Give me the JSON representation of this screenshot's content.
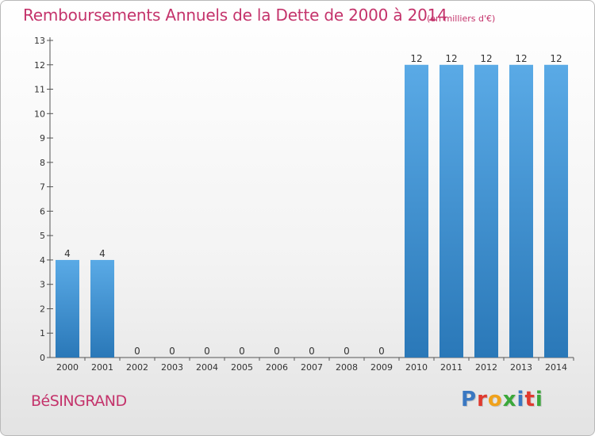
{
  "header": {
    "title": "Remboursements Annuels de la Dette de 2000 à 2014",
    "unit": "(en milliers d'€)"
  },
  "footer": {
    "commune": "BéSINGRAND",
    "logo_text": "Proxiti",
    "logo_colors": [
      "#3a78c2",
      "#e03a2f",
      "#f0a21c",
      "#3aa83a",
      "#3a78c2",
      "#e03a2f",
      "#3aa83a"
    ]
  },
  "colors": {
    "bar_top": "#5aaae6",
    "bar_bottom": "#2a78b8",
    "axis": "#555555",
    "text": "#333333"
  },
  "chart_data": {
    "type": "bar",
    "categories": [
      "2000",
      "2001",
      "2002",
      "2003",
      "2004",
      "2005",
      "2006",
      "2007",
      "2008",
      "2009",
      "2010",
      "2011",
      "2012",
      "2013",
      "2014"
    ],
    "values": [
      4,
      4,
      0,
      0,
      0,
      0,
      0,
      0,
      0,
      0,
      12,
      12,
      12,
      12,
      12
    ],
    "title": "Remboursements Annuels de la Dette de 2000 à 2014",
    "xlabel": "",
    "ylabel": "",
    "ylim": [
      0,
      13
    ],
    "yticks": [
      0,
      1,
      2,
      3,
      4,
      5,
      6,
      7,
      8,
      9,
      10,
      11,
      12,
      13
    ],
    "grid": false,
    "data_labels": true
  }
}
